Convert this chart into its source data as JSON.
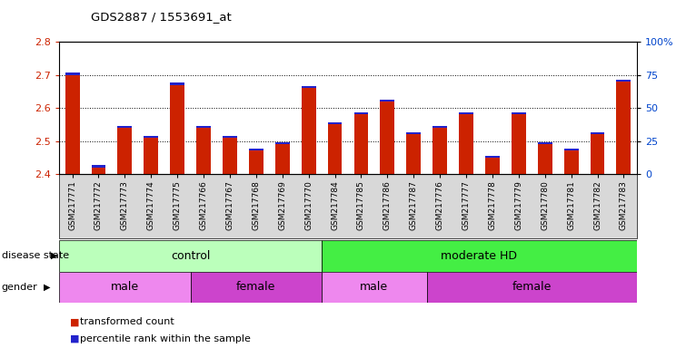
{
  "title": "GDS2887 / 1553691_at",
  "samples": [
    "GSM217771",
    "GSM217772",
    "GSM217773",
    "GSM217774",
    "GSM217775",
    "GSM217766",
    "GSM217767",
    "GSM217768",
    "GSM217769",
    "GSM217770",
    "GSM217784",
    "GSM217785",
    "GSM217786",
    "GSM217787",
    "GSM217776",
    "GSM217777",
    "GSM217778",
    "GSM217779",
    "GSM217780",
    "GSM217781",
    "GSM217782",
    "GSM217783"
  ],
  "red_values": [
    2.7,
    2.42,
    2.54,
    2.51,
    2.67,
    2.54,
    2.51,
    2.47,
    2.49,
    2.66,
    2.55,
    2.58,
    2.62,
    2.52,
    2.54,
    2.58,
    2.45,
    2.58,
    2.49,
    2.47,
    2.52,
    2.68
  ],
  "blue_values": [
    0.008,
    0.008,
    0.006,
    0.006,
    0.006,
    0.006,
    0.006,
    0.006,
    0.006,
    0.006,
    0.006,
    0.006,
    0.006,
    0.006,
    0.006,
    0.007,
    0.006,
    0.007,
    0.006,
    0.006,
    0.006,
    0.006
  ],
  "ymin": 2.4,
  "ymax": 2.8,
  "yticks": [
    2.4,
    2.5,
    2.6,
    2.7,
    2.8
  ],
  "right_yticks": [
    0,
    25,
    50,
    75,
    100
  ],
  "right_yticklabels": [
    "0",
    "25",
    "50",
    "75",
    "100%"
  ],
  "grid_lines": [
    2.5,
    2.6,
    2.7
  ],
  "bar_color_red": "#cc2200",
  "bar_color_blue": "#2222cc",
  "bar_width": 0.55,
  "disease_state_groups": [
    {
      "label": "control",
      "start": 0,
      "end": 10,
      "color": "#bbffbb"
    },
    {
      "label": "moderate HD",
      "start": 10,
      "end": 22,
      "color": "#44ee44"
    }
  ],
  "gender_groups": [
    {
      "label": "male",
      "start": 0,
      "end": 5,
      "color": "#ee88ee"
    },
    {
      "label": "female",
      "start": 5,
      "end": 10,
      "color": "#cc44cc"
    },
    {
      "label": "male",
      "start": 10,
      "end": 14,
      "color": "#ee88ee"
    },
    {
      "label": "female",
      "start": 14,
      "end": 22,
      "color": "#cc44cc"
    }
  ],
  "legend_red_label": "transformed count",
  "legend_blue_label": "percentile rank within the sample",
  "legend_red_color": "#cc2200",
  "legend_blue_color": "#2222cc",
  "left_tick_color": "#cc2200",
  "right_tick_color": "#0044cc",
  "plot_bg": "#ffffff",
  "disease_label": "disease state",
  "gender_label": "gender"
}
